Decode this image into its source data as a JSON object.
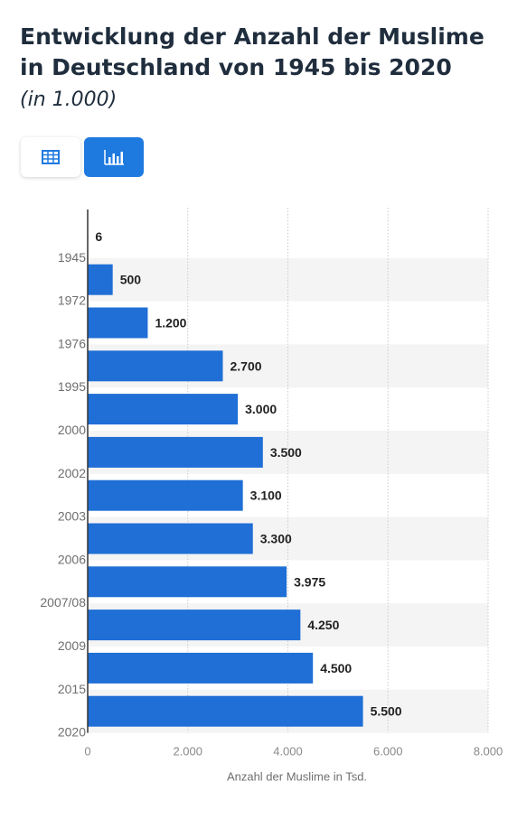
{
  "header": {
    "title": "Entwicklung der Anzahl der Muslime in Deutschland von 1945 bis 2020",
    "subtitle": "(in 1.000)"
  },
  "toggles": [
    {
      "icon": "table-icon",
      "active": false
    },
    {
      "icon": "bar-chart-icon",
      "active": true
    }
  ],
  "colors": {
    "bar": "#1f6fd6",
    "accent": "#1f7ae0",
    "band": "#f4f4f4"
  },
  "chart_data": {
    "type": "bar",
    "orientation": "horizontal",
    "categories": [
      "1945",
      "1972",
      "1976",
      "1995",
      "2000",
      "2002",
      "2003",
      "2006",
      "2007/08",
      "2009",
      "2015",
      "2020"
    ],
    "values": [
      6,
      500,
      1200,
      2700,
      3000,
      3500,
      3100,
      3300,
      3975,
      4250,
      4500,
      5500
    ],
    "value_labels": [
      "6",
      "500",
      "1.200",
      "2.700",
      "3.000",
      "3.500",
      "3.100",
      "3.300",
      "3.975",
      "4.250",
      "4.500",
      "5.500"
    ],
    "xlabel": "Anzahl der Muslime in Tsd.",
    "xlim": [
      0,
      8000
    ],
    "xticks": [
      0,
      2000,
      4000,
      6000,
      8000
    ],
    "xtick_labels": [
      "0",
      "2.000",
      "4.000",
      "6.000",
      "8.000"
    ],
    "grid": "vertical dotted"
  }
}
